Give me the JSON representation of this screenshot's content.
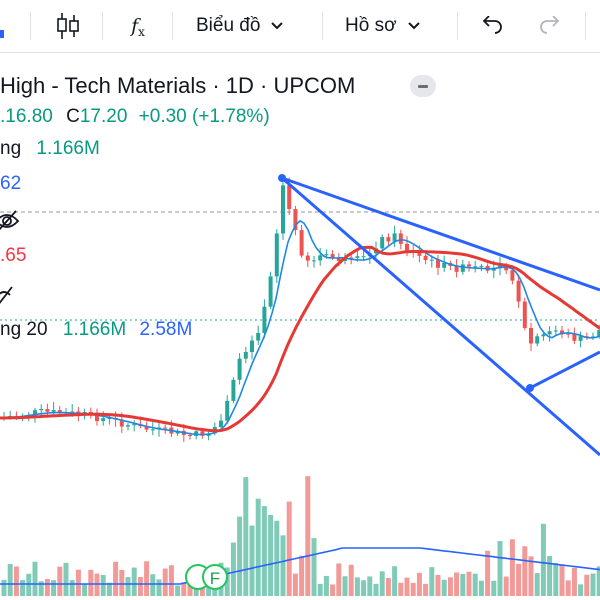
{
  "toolbar": {
    "candle_icon": "candlestick-icon",
    "fx_label": "f",
    "fx_sub": "x",
    "chart_menu_label": "Biểu đồ",
    "profile_menu_label": "Hồ sơ"
  },
  "legend": {
    "title": "High - Tech Materials · 1D · UPCOM",
    "open_partial": ".16.80",
    "close_label": "C",
    "close_value": "17.20",
    "change": "+0.30 (+1.78%)",
    "volume_label_partial": "ng",
    "volume_value": "1.166M",
    "bb_value_partial": "62",
    "red_value_partial": ".65",
    "vol_ma_label_partial": "ng 20",
    "vol_ma_value1": "1.166M",
    "vol_ma_value2": "2.58M"
  },
  "markers": {
    "event_label": "F"
  },
  "colors": {
    "up": "#26a69a",
    "down": "#ef5350",
    "trendline": "#2962ff",
    "ma_slow": "#e53935",
    "ma_fast": "#1e88e5"
  }
}
